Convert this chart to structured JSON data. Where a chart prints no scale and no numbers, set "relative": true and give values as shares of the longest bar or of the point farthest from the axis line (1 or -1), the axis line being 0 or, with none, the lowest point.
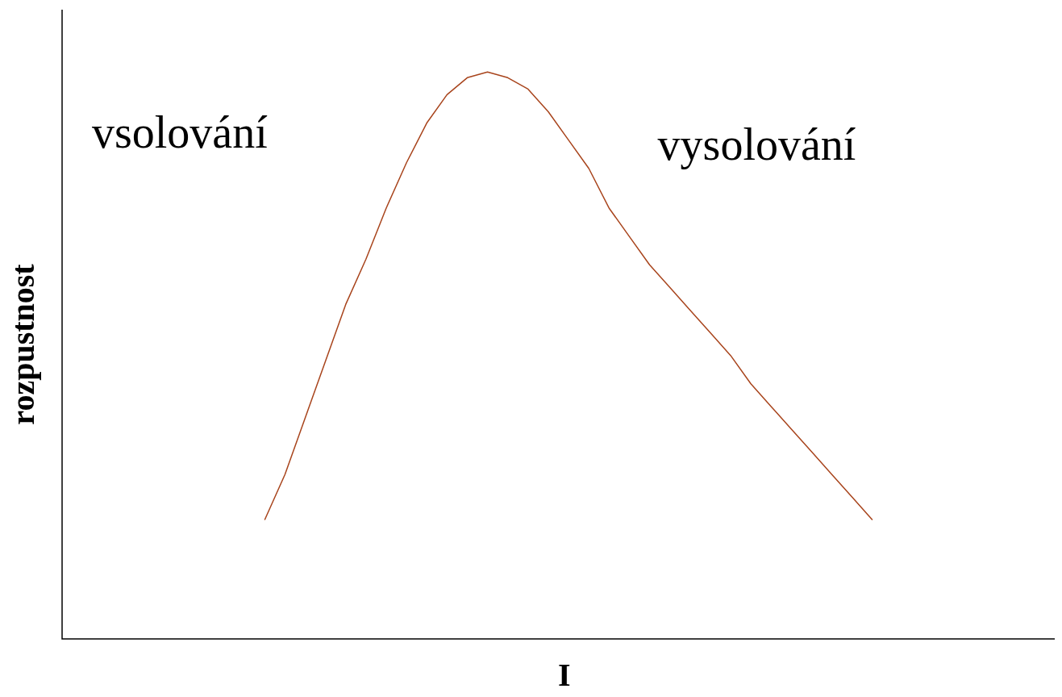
{
  "chart_data": {
    "type": "line",
    "relative": true,
    "xlabel": "I",
    "ylabel": "rozpustnost",
    "annotations": [
      "vsolování",
      "vysolování"
    ],
    "categories": [
      null,
      null,
      null,
      null,
      null,
      null,
      null,
      null,
      null,
      null,
      null,
      null,
      null,
      null,
      null,
      null,
      null,
      null,
      null,
      null,
      null,
      null,
      null,
      null,
      null,
      null,
      null,
      null,
      null,
      null,
      null,
      null,
      null,
      null,
      null,
      null,
      null,
      null,
      null,
      null,
      null,
      null,
      null,
      null,
      null,
      null,
      null,
      null,
      null,
      null
    ],
    "series": [
      {
        "color": "#a8441c",
        "values": [
          null,
          null,
          null,
          null,
          null,
          null,
          null,
          null,
          null,
          null,
          0.21,
          0.29,
          0.39,
          0.49,
          0.59,
          0.67,
          0.76,
          0.84,
          0.91,
          0.96,
          0.99,
          1.0,
          0.99,
          0.97,
          0.93,
          0.88,
          0.83,
          0.76,
          0.71,
          0.66,
          0.62,
          0.58,
          0.54,
          0.5,
          0.45,
          0.41,
          0.37,
          0.33,
          0.29,
          0.25,
          0.21,
          null,
          null,
          null,
          null,
          null,
          null,
          null,
          null,
          null
        ]
      }
    ],
    "legend": false,
    "grid": false,
    "marker": "none",
    "line_style": "solid"
  }
}
